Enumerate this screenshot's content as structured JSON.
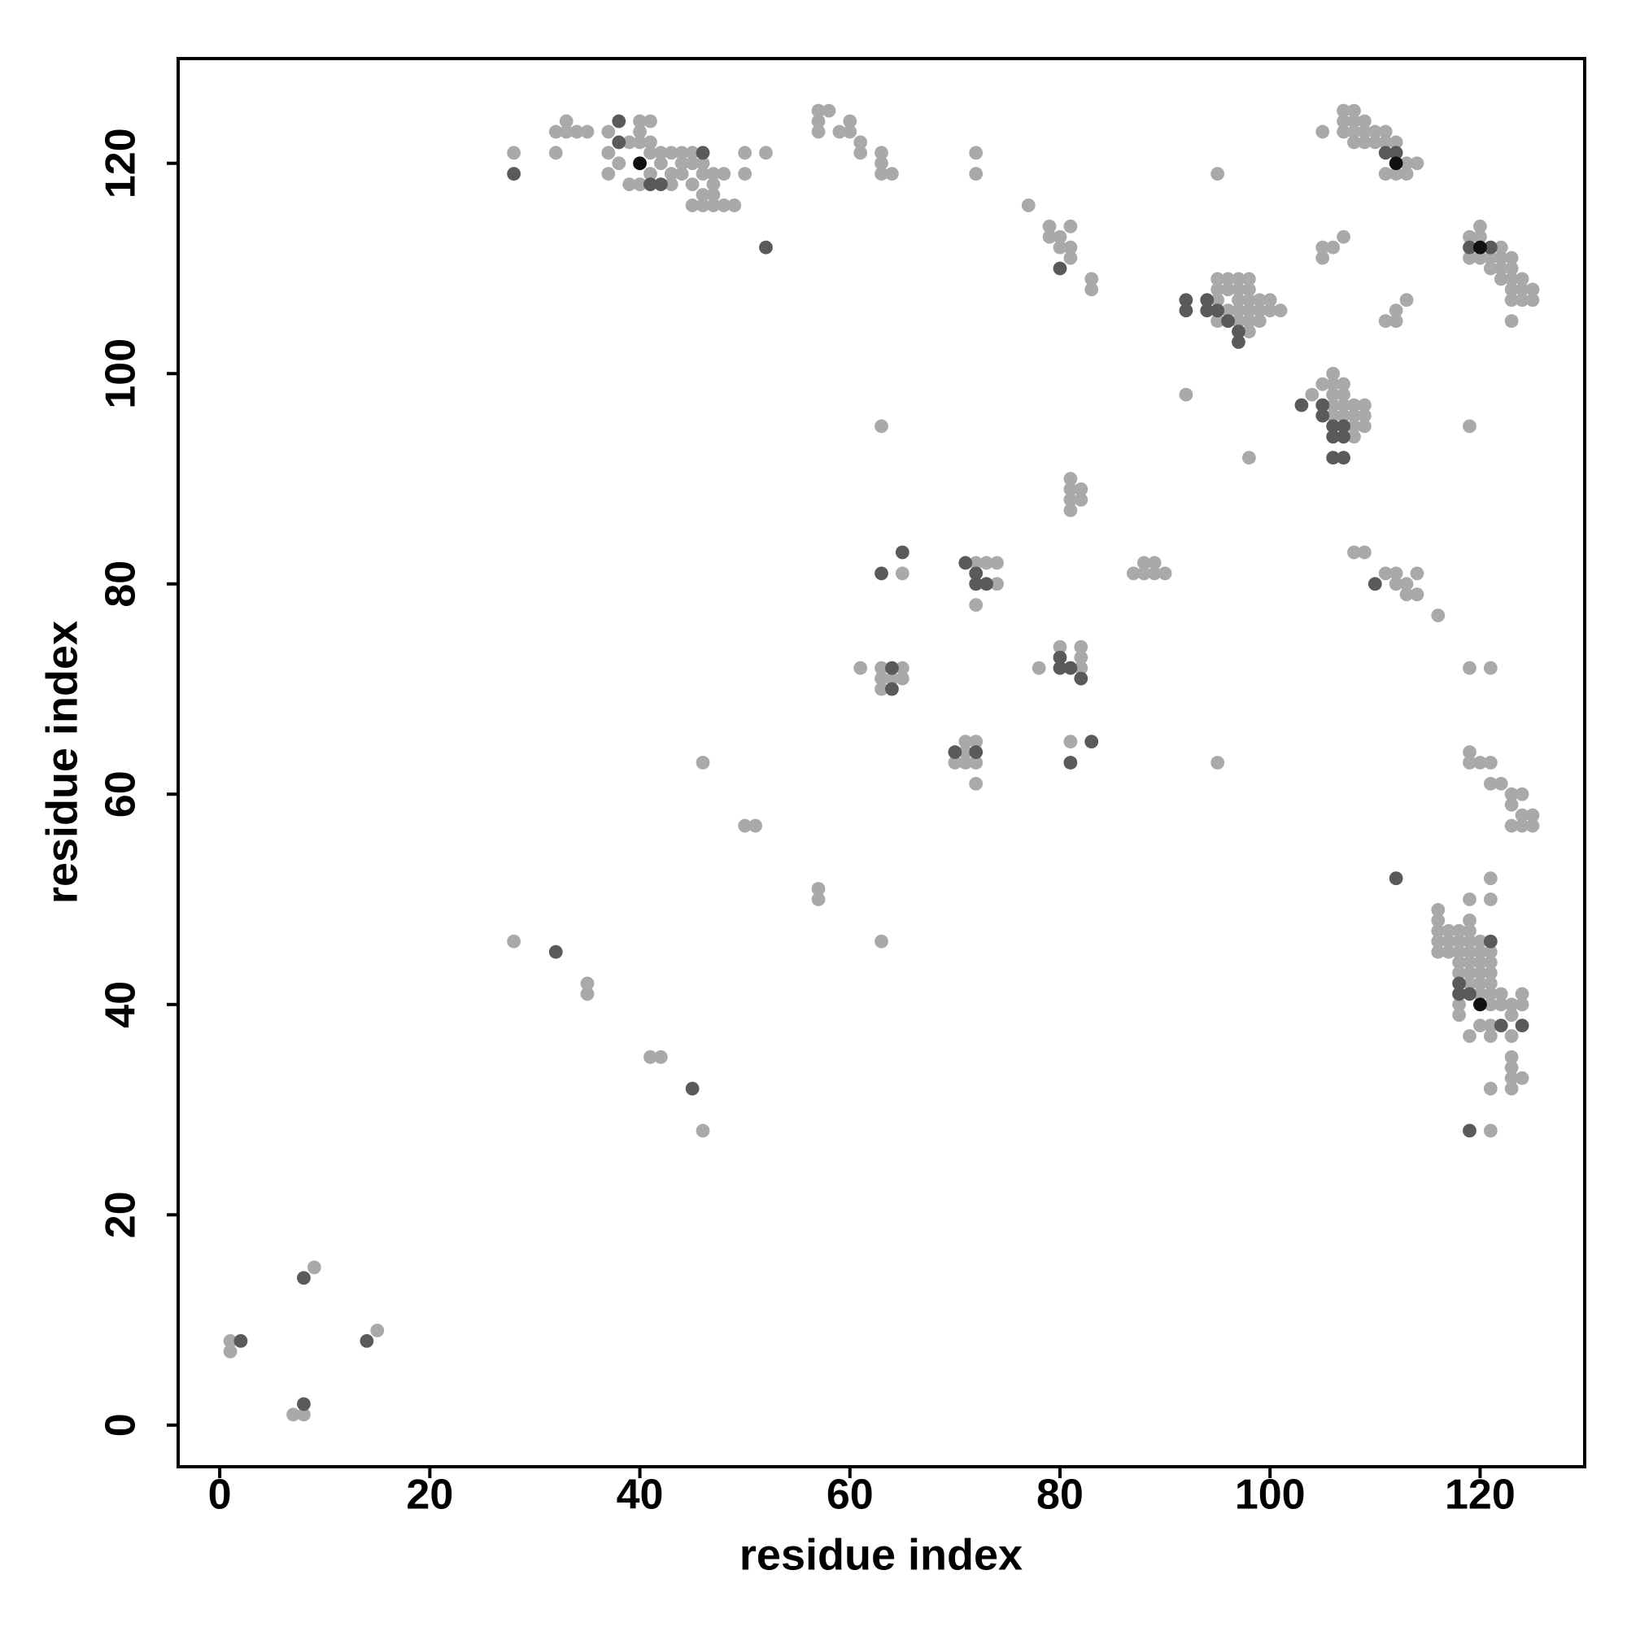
{
  "chart_data": {
    "type": "scatter",
    "xlabel": "residue index",
    "ylabel": "residue index",
    "xlim": [
      -3.96,
      129.96
    ],
    "ylim": [
      -3.96,
      129.96
    ],
    "xticks": [
      0,
      20,
      40,
      60,
      80,
      100,
      120
    ],
    "yticks": [
      0,
      20,
      40,
      60,
      80,
      100,
      120
    ],
    "series": [
      {
        "color": "#a9a9a9",
        "x": [
          1,
          1,
          9,
          15,
          7,
          8,
          28,
          35,
          35,
          41,
          42,
          46,
          46,
          50,
          51,
          57,
          57,
          63,
          61,
          63,
          63,
          63,
          65,
          65,
          64,
          65,
          63,
          72,
          73,
          74,
          74,
          72,
          71,
          72,
          71,
          70,
          71,
          72,
          72,
          78,
          80,
          82,
          82,
          82,
          81,
          81,
          81,
          82,
          81,
          82,
          81,
          87,
          88,
          89,
          88,
          89,
          90,
          77,
          79,
          81,
          79,
          80,
          80,
          81,
          81,
          83,
          83,
          28,
          32,
          32,
          33,
          34,
          35,
          33,
          37,
          37,
          37,
          38,
          39,
          40,
          40,
          41,
          40,
          41,
          42,
          41,
          43,
          44,
          43,
          44,
          45,
          45,
          46,
          46,
          47,
          48,
          47,
          45,
          46,
          47,
          45,
          46,
          47,
          48,
          49,
          50,
          50,
          52,
          42,
          43,
          44,
          39,
          40,
          41,
          57,
          58,
          57,
          57,
          59,
          60,
          60,
          61,
          61,
          63,
          63,
          63,
          64,
          72,
          72,
          95,
          92,
          95,
          98,
          95,
          95,
          96,
          95,
          96,
          97,
          98,
          96,
          97,
          98,
          97,
          98,
          99,
          100,
          97,
          98,
          99,
          100,
          101,
          97,
          98,
          99,
          98,
          95,
          104,
          106,
          106,
          107,
          105,
          106,
          107,
          106,
          107,
          108,
          109,
          106,
          107,
          108,
          109,
          108,
          109,
          108,
          105,
          105,
          105,
          106,
          107,
          107,
          108,
          107,
          108,
          109,
          107,
          108,
          109,
          110,
          111,
          109,
          110,
          111,
          112,
          113,
          114,
          111,
          112,
          113,
          108,
          111,
          112,
          112,
          113,
          108,
          109,
          111,
          112,
          112,
          113,
          114,
          113,
          114,
          116,
          119,
          119,
          121,
          119,
          119,
          120,
          120,
          120,
          121,
          122,
          121,
          122,
          123,
          122,
          123,
          122,
          123,
          124,
          123,
          124,
          125,
          123,
          124,
          125,
          123,
          119,
          119,
          120,
          121,
          121,
          122,
          123,
          124,
          123,
          124,
          125,
          123,
          124,
          125,
          121,
          121,
          119,
          116,
          116,
          116,
          117,
          118,
          116,
          117,
          118,
          119,
          119,
          119,
          120,
          116,
          117,
          118,
          119,
          120,
          121,
          118,
          119,
          120,
          121,
          118,
          119,
          120,
          121,
          119,
          120,
          121,
          122,
          120,
          121,
          122,
          123,
          124,
          124,
          121,
          118,
          118,
          123,
          120,
          121,
          119,
          121,
          123,
          123,
          123,
          123,
          124,
          123,
          121,
          121
        ],
        "y": [
          8,
          7,
          15,
          9,
          1,
          1,
          46,
          42,
          41,
          35,
          35,
          28,
          63,
          57,
          57,
          51,
          50,
          46,
          72,
          72,
          71,
          70,
          72,
          71,
          71,
          81,
          95,
          82,
          82,
          82,
          80,
          78,
          65,
          65,
          64,
          63,
          63,
          63,
          61,
          72,
          74,
          74,
          73,
          72,
          65,
          90,
          89,
          89,
          88,
          88,
          87,
          81,
          82,
          82,
          81,
          81,
          81,
          116,
          114,
          114,
          113,
          113,
          112,
          112,
          111,
          109,
          108,
          121,
          123,
          121,
          124,
          123,
          123,
          123,
          123,
          121,
          119,
          120,
          118,
          118,
          124,
          124,
          123,
          122,
          121,
          119,
          118,
          120,
          121,
          121,
          121,
          120,
          120,
          119,
          119,
          119,
          118,
          118,
          117,
          117,
          116,
          116,
          116,
          116,
          116,
          121,
          119,
          121,
          120,
          119,
          119,
          122,
          122,
          121,
          125,
          125,
          124,
          123,
          123,
          124,
          123,
          122,
          121,
          121,
          120,
          119,
          119,
          121,
          119,
          119,
          98,
          63,
          92,
          108,
          107,
          106,
          105,
          109,
          109,
          109,
          108,
          108,
          108,
          107,
          107,
          107,
          107,
          106,
          106,
          106,
          106,
          106,
          105,
          105,
          105,
          104,
          109,
          98,
          100,
          99,
          99,
          99,
          98,
          98,
          97,
          97,
          97,
          97,
          96,
          96,
          96,
          96,
          95,
          95,
          94,
          123,
          112,
          111,
          112,
          113,
          125,
          125,
          124,
          124,
          124,
          123,
          123,
          123,
          123,
          123,
          122,
          122,
          122,
          122,
          120,
          120,
          119,
          119,
          119,
          122,
          105,
          105,
          106,
          107,
          83,
          83,
          81,
          81,
          80,
          80,
          81,
          79,
          79,
          77,
          95,
          72,
          72,
          113,
          111,
          114,
          113,
          111,
          111,
          112,
          110,
          111,
          111,
          110,
          110,
          109,
          109,
          109,
          108,
          108,
          108,
          107,
          107,
          107,
          105,
          64,
          63,
          63,
          63,
          61,
          61,
          60,
          60,
          59,
          58,
          58,
          57,
          57,
          57,
          52,
          50,
          50,
          49,
          48,
          47,
          47,
          47,
          46,
          46,
          46,
          48,
          47,
          46,
          46,
          45,
          45,
          45,
          45,
          45,
          45,
          44,
          44,
          44,
          44,
          43,
          43,
          43,
          43,
          42,
          42,
          42,
          41,
          41,
          41,
          40,
          40,
          41,
          40,
          40,
          40,
          39,
          39,
          38,
          38,
          37,
          37,
          37,
          35,
          34,
          33,
          33,
          32,
          32,
          28
        ]
      },
      {
        "color": "#5a5a5a",
        "x": [
          2,
          8,
          14,
          8,
          32,
          45,
          64,
          64,
          63,
          65,
          71,
          72,
          72,
          73,
          70,
          72,
          80,
          80,
          81,
          82,
          83,
          81,
          80,
          52,
          28,
          38,
          38,
          41,
          42,
          46,
          92,
          92,
          94,
          94,
          95,
          96,
          97,
          97,
          103,
          105,
          105,
          106,
          107,
          106,
          107,
          106,
          107,
          111,
          112,
          110,
          119,
          121,
          112,
          121,
          118,
          118,
          119,
          122,
          124,
          119
        ],
        "y": [
          8,
          14,
          8,
          2,
          45,
          32,
          72,
          70,
          81,
          83,
          82,
          81,
          80,
          80,
          64,
          64,
          73,
          72,
          72,
          71,
          65,
          63,
          110,
          112,
          119,
          124,
          122,
          118,
          118,
          121,
          107,
          106,
          107,
          106,
          106,
          105,
          104,
          103,
          97,
          97,
          96,
          95,
          95,
          94,
          94,
          92,
          92,
          121,
          121,
          80,
          112,
          112,
          52,
          46,
          42,
          41,
          41,
          38,
          38,
          28
        ]
      },
      {
        "color": "#111111",
        "x": [
          40,
          112,
          120,
          120
        ],
        "y": [
          120,
          120,
          112,
          40
        ]
      }
    ]
  }
}
